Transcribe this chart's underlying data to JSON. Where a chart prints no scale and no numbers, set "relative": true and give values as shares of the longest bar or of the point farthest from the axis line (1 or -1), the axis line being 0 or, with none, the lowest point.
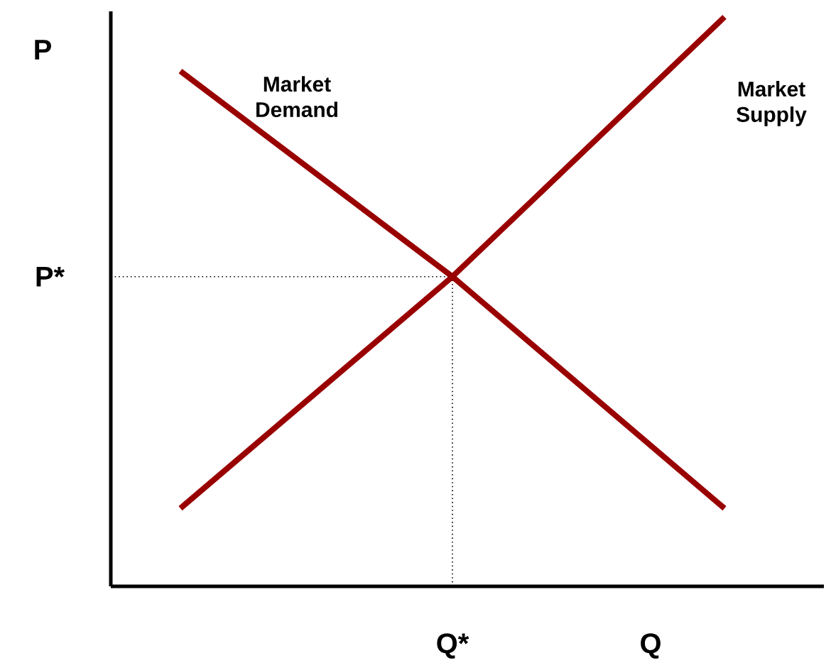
{
  "chart_data": {
    "type": "line",
    "relative": true,
    "xlabel": "Q",
    "ylabel": "P",
    "categories": [
      null,
      null,
      null
    ],
    "series": [
      {
        "name": "Market Demand",
        "color": "#990000",
        "values": [
          0.905,
          0.544,
          0.137
        ]
      },
      {
        "name": "Market Supply",
        "color": "#990000",
        "values": [
          0.137,
          0.544,
          1.0
        ]
      }
    ],
    "ref_lines": [
      {
        "axis": "y",
        "value": 0.544,
        "label": "P*",
        "color": "#000000",
        "line_style": "dotted"
      }
    ],
    "annotations": [
      "Q*"
    ],
    "line_style": "solid",
    "marker": "none",
    "legend": false
  }
}
